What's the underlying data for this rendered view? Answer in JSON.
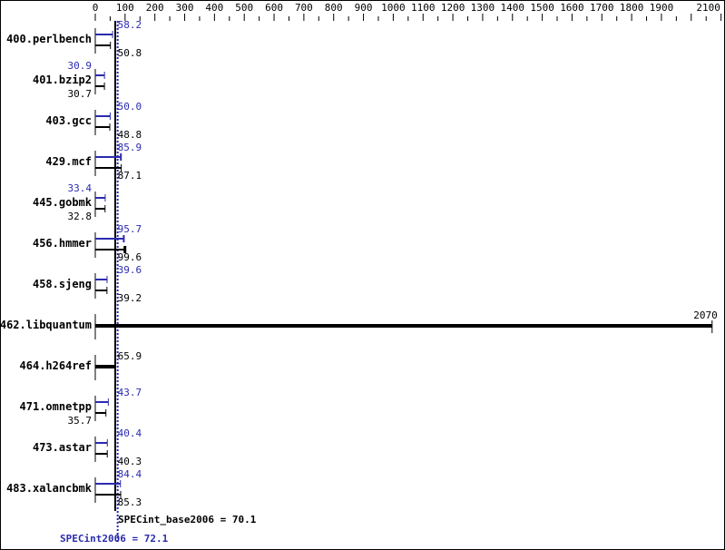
{
  "chart_data": {
    "type": "bar",
    "orientation": "horizontal",
    "xlim": [
      0,
      2100
    ],
    "x_tick_labels": [
      "0",
      "100",
      "200",
      "300",
      "400",
      "500",
      "600",
      "700",
      "800",
      "900",
      "1000",
      "1100",
      "1200",
      "1300",
      "1400",
      "1500",
      "1600",
      "1700",
      "1800",
      "1900",
      "2100"
    ],
    "x_tick_values": [
      0,
      100,
      200,
      300,
      400,
      500,
      600,
      700,
      800,
      900,
      1000,
      1100,
      1200,
      1300,
      1400,
      1500,
      1600,
      1700,
      1800,
      1900,
      2100
    ],
    "categories": [
      "400.perlbench",
      "401.bzip2",
      "403.gcc",
      "429.mcf",
      "445.gobmk",
      "456.hmmer",
      "458.sjeng",
      "462.libquantum",
      "464.h264ref",
      "471.omnetpp",
      "473.astar",
      "483.xalancbmk"
    ],
    "series": [
      {
        "key": "peak",
        "color": "#2b2bb0",
        "values": [
          58.2,
          30.9,
          50.0,
          85.9,
          33.4,
          95.7,
          39.6,
          null,
          null,
          43.7,
          40.4,
          84.4
        ],
        "labels": [
          "58.2",
          "30.9",
          "50.0",
          "85.9",
          "33.4",
          "95.7",
          "39.6",
          "",
          "",
          "43.7",
          "40.4",
          "84.4"
        ]
      },
      {
        "key": "base",
        "color": "#000000",
        "values": [
          50.8,
          30.7,
          48.8,
          87.1,
          32.8,
          99.6,
          39.2,
          2070,
          65.9,
          35.7,
          40.3,
          85.3
        ],
        "labels": [
          "50.8",
          "30.7",
          "48.8",
          "87.1",
          "32.8",
          "99.6",
          "39.2",
          "2070",
          "65.9",
          "35.7",
          "40.3",
          "85.3"
        ]
      }
    ],
    "single_bar_rows": [
      "462.libquantum",
      "464.h264ref"
    ],
    "reference_lines": [
      {
        "key": "base",
        "value": 70.1,
        "label": "SPECint_base2006 = 70.1",
        "color": "#000000",
        "style": "solid"
      },
      {
        "key": "peak",
        "value": 72.1,
        "label": "SPECint2006 = 72.1",
        "color": "#2b2bb0",
        "style": "dotted"
      }
    ],
    "grid": false,
    "legend": "none"
  }
}
